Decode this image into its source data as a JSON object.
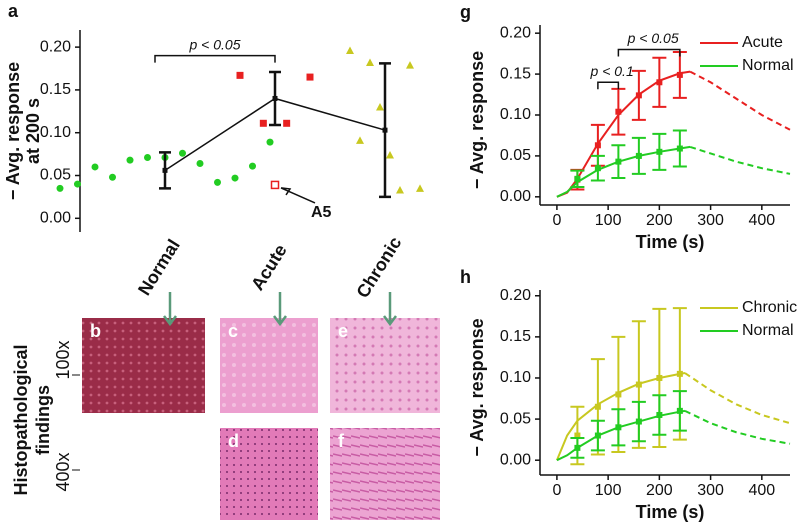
{
  "chart_data": [
    {
      "type": "dot",
      "panel": "a",
      "ylabel": [
        "− Avg. response",
        "at 200 s"
      ],
      "categories": [
        "Normal",
        "Acute",
        "Chronic"
      ],
      "markers": [
        "circle",
        "square",
        "triangle"
      ],
      "colors": [
        "#22cc22",
        "#e82020",
        "#c8c820"
      ],
      "points": [
        [
          0.035,
          0.04,
          0.06,
          0.048,
          0.068,
          0.071,
          0.071,
          0.076,
          0.064,
          0.042,
          0.047,
          0.061,
          0.089
        ],
        [
          0.167,
          0.111,
          0.111,
          0.165
        ],
        [
          0.196,
          0.091,
          0.182,
          0.13,
          0.074,
          0.033,
          0.179,
          0.035
        ]
      ],
      "means": [
        0.056,
        0.14,
        0.103
      ],
      "errors": [
        0.021,
        0.031,
        0.078
      ],
      "outlier": {
        "label": "A5",
        "value": 0.039
      },
      "bracket": {
        "label": "p < 0.05",
        "value": 0.19
      },
      "ylim": [
        -0.016,
        0.22
      ],
      "yticks": [
        {
          "value": 0,
          "label": "0.00"
        },
        0.05,
        {
          "value": 0.1,
          "label": "0.10"
        },
        0.15,
        {
          "value": 0.2,
          "label": "0.20"
        }
      ]
    },
    {
      "type": "line",
      "panel": "g",
      "xlabel": "Time (s)",
      "ylabel": "− Avg. response",
      "xlim": [
        -33,
        455
      ],
      "xticks": [
        0,
        100,
        200,
        300,
        400
      ],
      "ylim": [
        -0.01,
        0.21
      ],
      "yticks": [
        {
          "value": 0,
          "label": "0.00"
        },
        0.05,
        {
          "value": 0.1,
          "label": "0.10"
        },
        0.15,
        {
          "value": 0.2,
          "label": "0.20"
        }
      ],
      "series": [
        {
          "name": "Acute",
          "color": "#e82020",
          "x": [
            40,
            80,
            120,
            160,
            200,
            240
          ],
          "values": [
            0.021,
            0.063,
            0.104,
            0.124,
            0.14,
            0.149
          ],
          "errors": [
            0.012,
            0.025,
            0.028,
            0.03,
            0.03,
            0.028
          ],
          "fit": {
            "x": [
              0,
              20,
              40,
              80,
              120,
              160,
              200,
              240,
              260
            ],
            "values": [
              0,
              0.005,
              0.022,
              0.065,
              0.1,
              0.125,
              0.142,
              0.151,
              0.153
            ]
          },
          "projection": {
            "x": [
              260,
              300,
              350,
              400,
              455
            ],
            "values": [
              0.153,
              0.14,
              0.12,
              0.1,
              0.082
            ]
          }
        },
        {
          "name": "Normal",
          "color": "#22cc22",
          "x": [
            40,
            80,
            120,
            160,
            200,
            240
          ],
          "values": [
            0.022,
            0.035,
            0.043,
            0.05,
            0.055,
            0.059
          ],
          "errors": [
            0.01,
            0.015,
            0.02,
            0.022,
            0.022,
            0.022
          ],
          "fit": {
            "x": [
              0,
              20,
              40,
              80,
              120,
              160,
              200,
              240,
              260
            ],
            "values": [
              0,
              0.006,
              0.018,
              0.033,
              0.043,
              0.05,
              0.055,
              0.059,
              0.061
            ]
          },
          "projection": {
            "x": [
              260,
              300,
              350,
              400,
              455
            ],
            "values": [
              0.061,
              0.053,
              0.043,
              0.035,
              0.028
            ]
          }
        }
      ],
      "brackets": [
        {
          "label": "p < 0.1",
          "x": [
            80,
            120
          ],
          "value": 0.14
        },
        {
          "label": "p < 0.05",
          "x": [
            120,
            240
          ],
          "value": 0.18
        }
      ]
    },
    {
      "type": "line",
      "panel": "h",
      "xlabel": "Time (s)",
      "ylabel": "− Avg. response",
      "xlim": [
        -33,
        455
      ],
      "xticks": [
        0,
        100,
        200,
        300,
        400
      ],
      "ylim": [
        -0.018,
        0.207
      ],
      "yticks": [
        {
          "value": 0,
          "label": "0.00"
        },
        0.05,
        {
          "value": 0.1,
          "label": "0.10"
        },
        0.15,
        {
          "value": 0.2,
          "label": "0.20"
        }
      ],
      "series": [
        {
          "name": "Chronic",
          "color": "#c8c820",
          "x": [
            40,
            80,
            120,
            160,
            200,
            240
          ],
          "values": [
            0.03,
            0.065,
            0.08,
            0.092,
            0.1,
            0.105
          ],
          "errors": [
            0.035,
            0.058,
            0.07,
            0.077,
            0.084,
            0.08
          ],
          "fit": {
            "x": [
              0,
              20,
              40,
              80,
              120,
              160,
              200,
              240,
              250
            ],
            "values": [
              0,
              0.03,
              0.048,
              0.068,
              0.082,
              0.093,
              0.1,
              0.105,
              0.106
            ]
          },
          "projection": {
            "x": [
              250,
              300,
              350,
              400,
              455
            ],
            "values": [
              0.106,
              0.085,
              0.068,
              0.055,
              0.045
            ]
          }
        },
        {
          "name": "Normal",
          "color": "#22cc22",
          "x": [
            40,
            80,
            120,
            160,
            200,
            240
          ],
          "values": [
            0.015,
            0.03,
            0.04,
            0.047,
            0.055,
            0.06
          ],
          "errors": [
            0.012,
            0.018,
            0.022,
            0.024,
            0.024,
            0.024
          ],
          "fit": {
            "x": [
              0,
              20,
              40,
              80,
              120,
              160,
              200,
              240,
              250
            ],
            "values": [
              0,
              0.006,
              0.015,
              0.03,
              0.04,
              0.047,
              0.054,
              0.059,
              0.06
            ]
          },
          "projection": {
            "x": [
              250,
              300,
              350,
              400,
              455
            ],
            "values": [
              0.06,
              0.045,
              0.034,
              0.026,
              0.02
            ]
          }
        }
      ]
    }
  ],
  "histology": {
    "title": [
      "Histopathological",
      "findings"
    ],
    "magnifications": [
      "100x",
      "400x"
    ],
    "panels": [
      "b",
      "c",
      "d",
      "e",
      "f"
    ]
  }
}
